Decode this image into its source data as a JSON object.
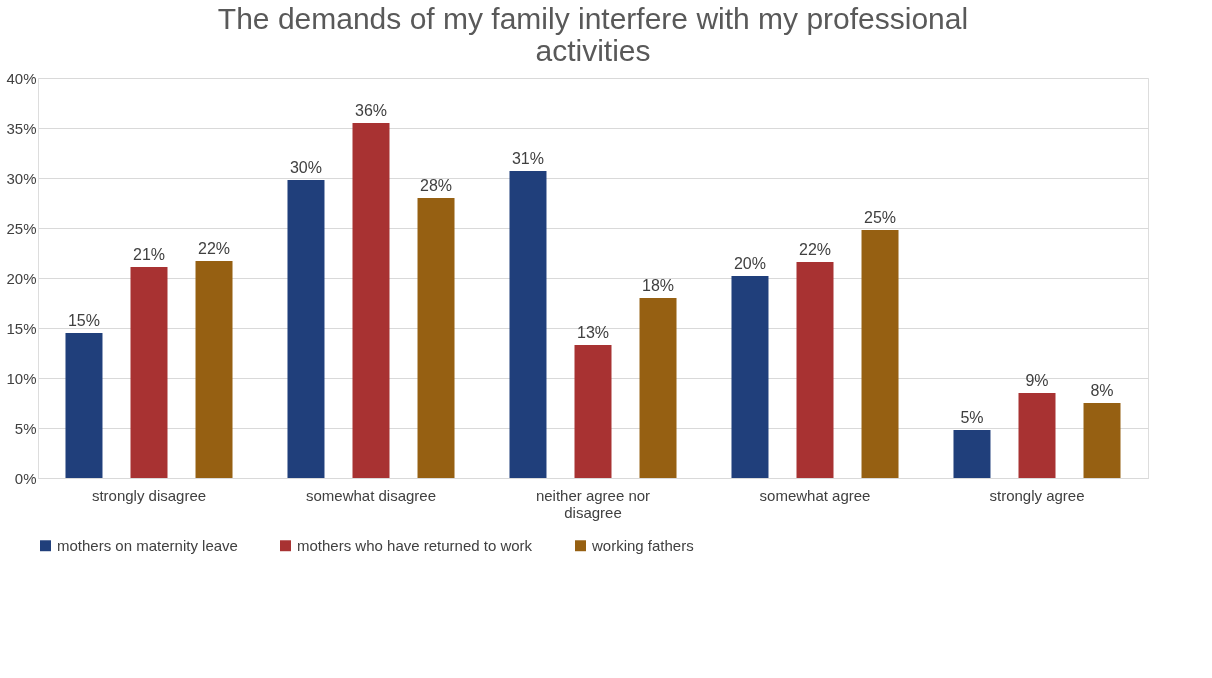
{
  "chart_data": {
    "type": "bar",
    "title": "The demands of my family interfere with my professional activities",
    "categories": [
      "strongly disagree",
      "somewhat disagree",
      "neither agree nor disagree",
      "somewhat agree",
      "strongly agree"
    ],
    "series": [
      {
        "name": "mothers on maternity leave",
        "color": "#203f7b",
        "values": [
          14.5,
          29.8,
          30.7,
          20.2,
          4.8
        ],
        "value_labels": [
          "15%",
          "30%",
          "31%",
          "20%",
          "5%"
        ]
      },
      {
        "name": "mothers who have returned to work",
        "color": "#a83232",
        "values": [
          21.1,
          35.5,
          13.3,
          21.6,
          8.5
        ],
        "value_labels": [
          "21%",
          "36%",
          "13%",
          "22%",
          "9%"
        ]
      },
      {
        "name": "working fathers",
        "color": "#966012",
        "values": [
          21.7,
          28.0,
          18.0,
          24.8,
          7.5
        ],
        "value_labels": [
          "22%",
          "28%",
          "18%",
          "25%",
          "8%"
        ]
      }
    ],
    "ylim": [
      0,
      40
    ],
    "yticks": [
      {
        "value": 0,
        "label": "0%"
      },
      {
        "value": 5,
        "label": "5%"
      },
      {
        "value": 10,
        "label": "10%"
      },
      {
        "value": 15,
        "label": "15%"
      },
      {
        "value": 20,
        "label": "20%"
      },
      {
        "value": 25,
        "label": "25%"
      },
      {
        "value": 30,
        "label": "30%"
      },
      {
        "value": 35,
        "label": "35%"
      },
      {
        "value": 40,
        "label": "40%"
      }
    ],
    "grid": "y",
    "legend": "bottom"
  }
}
